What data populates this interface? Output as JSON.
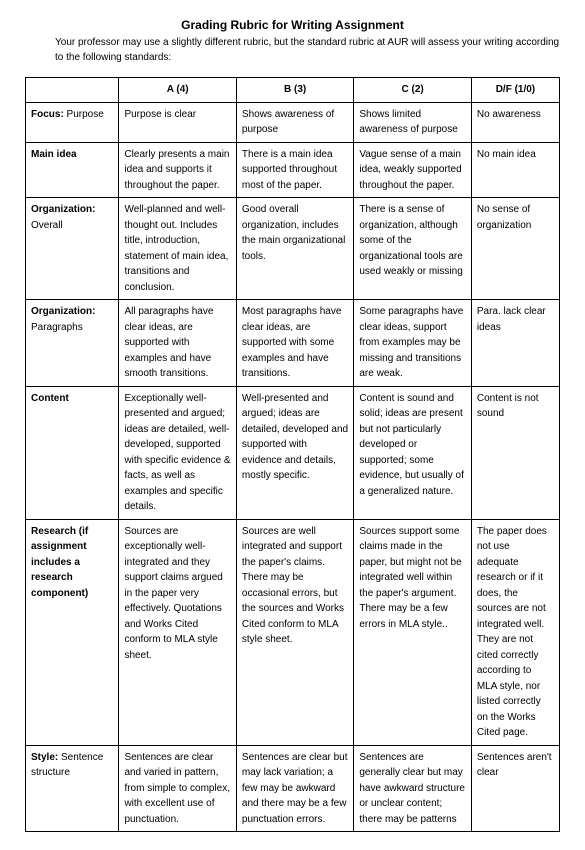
{
  "title": "Grading Rubric for Writing Assignment",
  "intro": "Your professor may use a slightly different rubric, but the standard rubric at AUR will assess your writing according to the following standards:",
  "columns": [
    "",
    "A  (4)",
    "B  (3)",
    "C  (2)",
    "D/F (1/0)"
  ],
  "rows": [
    {
      "label_bold": "Focus:",
      "label_rest": " Purpose",
      "cells": [
        "Purpose is clear",
        "Shows awareness of purpose",
        "Shows limited awareness of purpose",
        "No awareness"
      ]
    },
    {
      "label_bold": "Main idea",
      "label_rest": "",
      "cells": [
        "Clearly presents a main idea and supports it throughout the paper.",
        "There is a main idea supported throughout most of the paper.",
        "Vague sense of a main idea, weakly supported throughout the paper.",
        "No main idea"
      ]
    },
    {
      "label_bold": "Organization:",
      "label_rest": " Overall",
      "cells": [
        "Well-planned and well-thought out. Includes title, introduction, statement of main idea, transitions and conclusion.",
        "Good overall organization, includes the main organizational tools.",
        "There is a sense of organization, although some of the organizational tools are used weakly or missing",
        "No sense of organization"
      ]
    },
    {
      "label_bold": "Organization:",
      "label_rest": " Paragraphs",
      "cells": [
        "All paragraphs have clear ideas, are supported with examples and have smooth transitions.",
        "Most paragraphs have clear ideas, are supported with some examples and have transitions.",
        "Some paragraphs have clear ideas, support from examples may be missing and transitions are weak.",
        "Para. lack clear ideas"
      ]
    },
    {
      "label_bold": "Content",
      "label_rest": "",
      "cells": [
        "Exceptionally well-presented and argued; ideas are detailed, well-developed, supported with specific evidence & facts, as well as examples and specific details.",
        "Well-presented and argued; ideas are detailed, developed and supported with evidence and details, mostly specific.",
        "Content is sound and solid; ideas are present but not particularly developed or supported; some evidence, but usually of a generalized nature.",
        "Content is not sound"
      ]
    },
    {
      "label_bold": "Research (if assignment includes a research component)",
      "label_rest": "",
      "cells": [
        "Sources are exceptionally well-integrated and they support claims argued in the paper very effectively. Quotations and Works Cited conform to MLA style sheet.",
        "Sources are well integrated and support the paper's claims. There may be occasional errors, but the sources and Works Cited conform to MLA style sheet.",
        "Sources support some claims made in the paper, but might not be integrated well within the paper's argument. There may be a few errors in MLA style..",
        "The paper does not use adequate research or if it does, the sources are not integrated well. They are not cited correctly according to MLA style, nor listed correctly on the Works Cited page."
      ]
    },
    {
      "label_bold": "Style:",
      "label_rest": " Sentence structure",
      "cells": [
        "Sentences are clear and varied in pattern, from simple to complex, with excellent use of punctuation.",
        "Sentences are clear but may lack variation; a few may be awkward and there may be a few punctuation errors.",
        "Sentences are generally clear but may have awkward structure or unclear content; there may be patterns",
        "Sentences aren't clear"
      ]
    }
  ]
}
